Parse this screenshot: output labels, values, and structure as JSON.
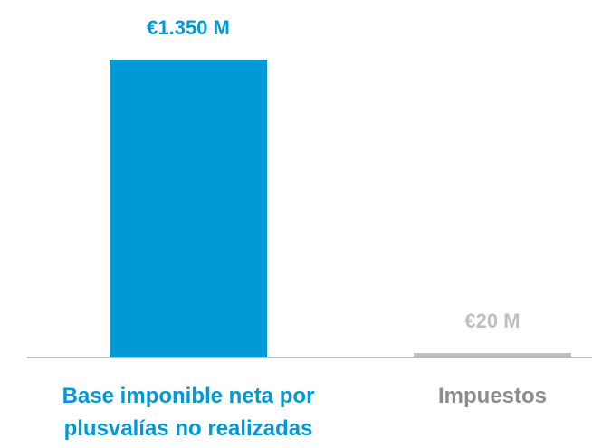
{
  "chart_data": {
    "type": "bar",
    "categories": [
      "Base imponible neta por plusvalías no realizadas",
      "Impuestos"
    ],
    "values": [
      1350,
      20
    ],
    "value_labels": [
      "€1.350 M",
      "€20 M"
    ],
    "colors": [
      "#0099d8",
      "#bfbfbf"
    ],
    "grid": false
  }
}
